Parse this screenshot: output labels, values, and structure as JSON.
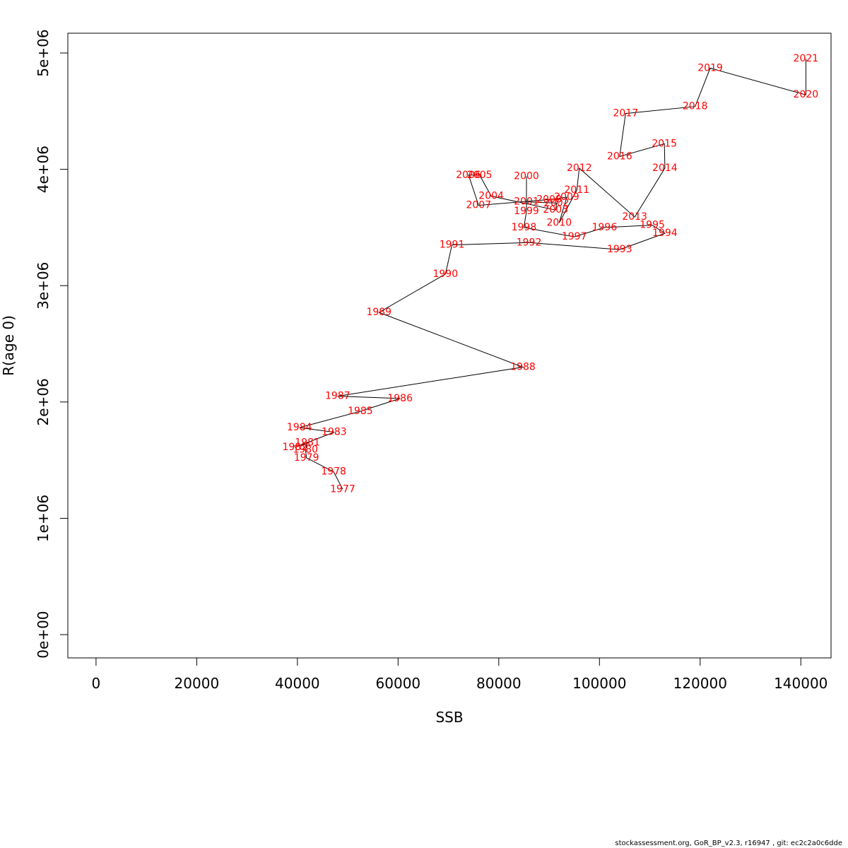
{
  "chart_data": {
    "type": "line",
    "title": "",
    "xlabel": "SSB",
    "ylabel": "R(age 0)",
    "xlim": [
      -5600,
      146000
    ],
    "ylim": [
      -200000,
      5170000
    ],
    "xticks": [
      0,
      20000,
      40000,
      60000,
      80000,
      100000,
      120000,
      140000
    ],
    "xtick_labels": [
      "0",
      "20000",
      "40000",
      "60000",
      "80000",
      "100000",
      "120000",
      "140000"
    ],
    "yticks": [
      0,
      1000000,
      2000000,
      3000000,
      4000000,
      5000000
    ],
    "ytick_labels": [
      "0e+00",
      "1e+06",
      "2e+06",
      "3e+06",
      "4e+06",
      "5e+06"
    ],
    "grid": false,
    "line_color": "#000000",
    "label_color": "#ff0000",
    "points": [
      {
        "label": "1977",
        "x": 49000,
        "y": 1250000
      },
      {
        "label": "1978",
        "x": 47200,
        "y": 1400000
      },
      {
        "label": "1979",
        "x": 41800,
        "y": 1520000
      },
      {
        "label": "1980",
        "x": 41600,
        "y": 1590000
      },
      {
        "label": "1981",
        "x": 42000,
        "y": 1650000
      },
      {
        "label": "1982",
        "x": 39500,
        "y": 1610000
      },
      {
        "label": "1983",
        "x": 47300,
        "y": 1740000
      },
      {
        "label": "1984",
        "x": 40400,
        "y": 1780000
      },
      {
        "label": "1985",
        "x": 52500,
        "y": 1920000
      },
      {
        "label": "1986",
        "x": 60400,
        "y": 2030000
      },
      {
        "label": "1987",
        "x": 48000,
        "y": 2050000
      },
      {
        "label": "1988",
        "x": 84800,
        "y": 2300000
      },
      {
        "label": "1989",
        "x": 56200,
        "y": 2770000
      },
      {
        "label": "1990",
        "x": 69400,
        "y": 3100000
      },
      {
        "label": "1991",
        "x": 70700,
        "y": 3350000
      },
      {
        "label": "1992",
        "x": 86000,
        "y": 3370000
      },
      {
        "label": "1993",
        "x": 104000,
        "y": 3310000
      },
      {
        "label": "1994",
        "x": 113000,
        "y": 3450000
      },
      {
        "label": "1995",
        "x": 110500,
        "y": 3520000
      },
      {
        "label": "1996",
        "x": 101000,
        "y": 3500000
      },
      {
        "label": "1997",
        "x": 95000,
        "y": 3420000
      },
      {
        "label": "1998",
        "x": 85000,
        "y": 3500000
      },
      {
        "label": "1999",
        "x": 85500,
        "y": 3640000
      },
      {
        "label": "2000",
        "x": 85500,
        "y": 3940000
      },
      {
        "label": "2001",
        "x": 85500,
        "y": 3720000
      },
      {
        "label": "2002",
        "x": 91500,
        "y": 3710000
      },
      {
        "label": "2003",
        "x": 91300,
        "y": 3650000
      },
      {
        "label": "2004",
        "x": 78500,
        "y": 3770000
      },
      {
        "label": "2005",
        "x": 76200,
        "y": 3950000
      },
      {
        "label": "2006",
        "x": 74000,
        "y": 3950000
      },
      {
        "label": "2007",
        "x": 76000,
        "y": 3690000
      },
      {
        "label": "2008",
        "x": 90000,
        "y": 3740000
      },
      {
        "label": "2009",
        "x": 93500,
        "y": 3760000
      },
      {
        "label": "2010",
        "x": 92000,
        "y": 3540000
      },
      {
        "label": "2011",
        "x": 95500,
        "y": 3820000
      },
      {
        "label": "2012",
        "x": 96000,
        "y": 4010000
      },
      {
        "label": "2013",
        "x": 107000,
        "y": 3590000
      },
      {
        "label": "2014",
        "x": 113000,
        "y": 4010000
      },
      {
        "label": "2015",
        "x": 112900,
        "y": 4220000
      },
      {
        "label": "2016",
        "x": 104000,
        "y": 4110000
      },
      {
        "label": "2017",
        "x": 105200,
        "y": 4480000
      },
      {
        "label": "2018",
        "x": 119000,
        "y": 4540000
      },
      {
        "label": "2019",
        "x": 122000,
        "y": 4870000
      },
      {
        "label": "2020",
        "x": 141000,
        "y": 4640000
      },
      {
        "label": "2021",
        "x": 141000,
        "y": 4950000
      }
    ]
  },
  "footer": "stockassessment.org, GoR_BP_v2.3, r16947 , git: ec2c2a0c6dde"
}
